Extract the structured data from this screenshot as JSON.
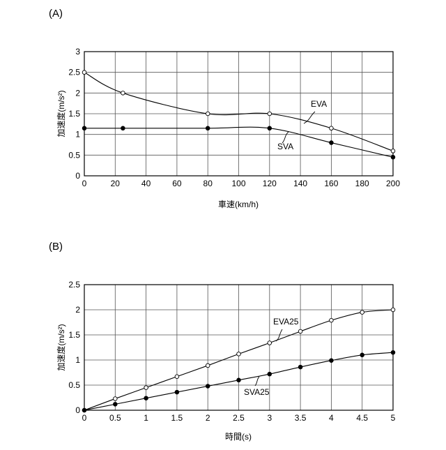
{
  "chart_data": [
    {
      "panel_label": "(A)",
      "type": "line",
      "xlabel": "車速(km/h)",
      "ylabel": "加速度(m/s²)",
      "xlim": [
        0,
        200
      ],
      "ylim": [
        0,
        3
      ],
      "xticks": [
        "0",
        "20",
        "40",
        "60",
        "80",
        "100",
        "120",
        "140",
        "160",
        "180",
        "200"
      ],
      "yticks": [
        "0",
        "0.5",
        "1",
        "1.5",
        "2",
        "2.5",
        "3"
      ],
      "grid": true,
      "series": [
        {
          "name": "EVA",
          "marker": "open",
          "x": [
            0,
            25,
            80,
            120,
            160,
            200
          ],
          "y": [
            2.5,
            2.0,
            1.5,
            1.5,
            1.15,
            0.6
          ]
        },
        {
          "name": "SVA",
          "marker": "filled",
          "x": [
            0,
            25,
            80,
            120,
            160,
            200
          ],
          "y": [
            1.15,
            1.15,
            1.15,
            1.15,
            0.8,
            0.45
          ]
        }
      ]
    },
    {
      "panel_label": "(B)",
      "type": "line",
      "xlabel": "時間(s)",
      "ylabel": "加速度(m/s²)",
      "xlim": [
        0,
        5
      ],
      "ylim": [
        0,
        2.5
      ],
      "xticks": [
        "0",
        "0.5",
        "1",
        "1.5",
        "2",
        "2.5",
        "3",
        "3.5",
        "4",
        "4.5",
        "5"
      ],
      "yticks": [
        "0",
        "0.5",
        "1",
        "1.5",
        "2",
        "2.5"
      ],
      "grid": true,
      "series": [
        {
          "name": "EVA25",
          "marker": "open",
          "x": [
            0,
            0.5,
            1,
            1.5,
            2,
            2.5,
            3,
            3.5,
            4,
            4.5,
            5
          ],
          "y": [
            0,
            0.23,
            0.45,
            0.67,
            0.89,
            1.12,
            1.34,
            1.57,
            1.79,
            1.95,
            2.0
          ]
        },
        {
          "name": "SVA25",
          "marker": "filled",
          "x": [
            0,
            0.5,
            1,
            1.5,
            2,
            2.5,
            3,
            3.5,
            4,
            4.5,
            5
          ],
          "y": [
            0,
            0.12,
            0.24,
            0.36,
            0.48,
            0.6,
            0.72,
            0.86,
            0.99,
            1.1,
            1.15
          ]
        }
      ]
    }
  ]
}
